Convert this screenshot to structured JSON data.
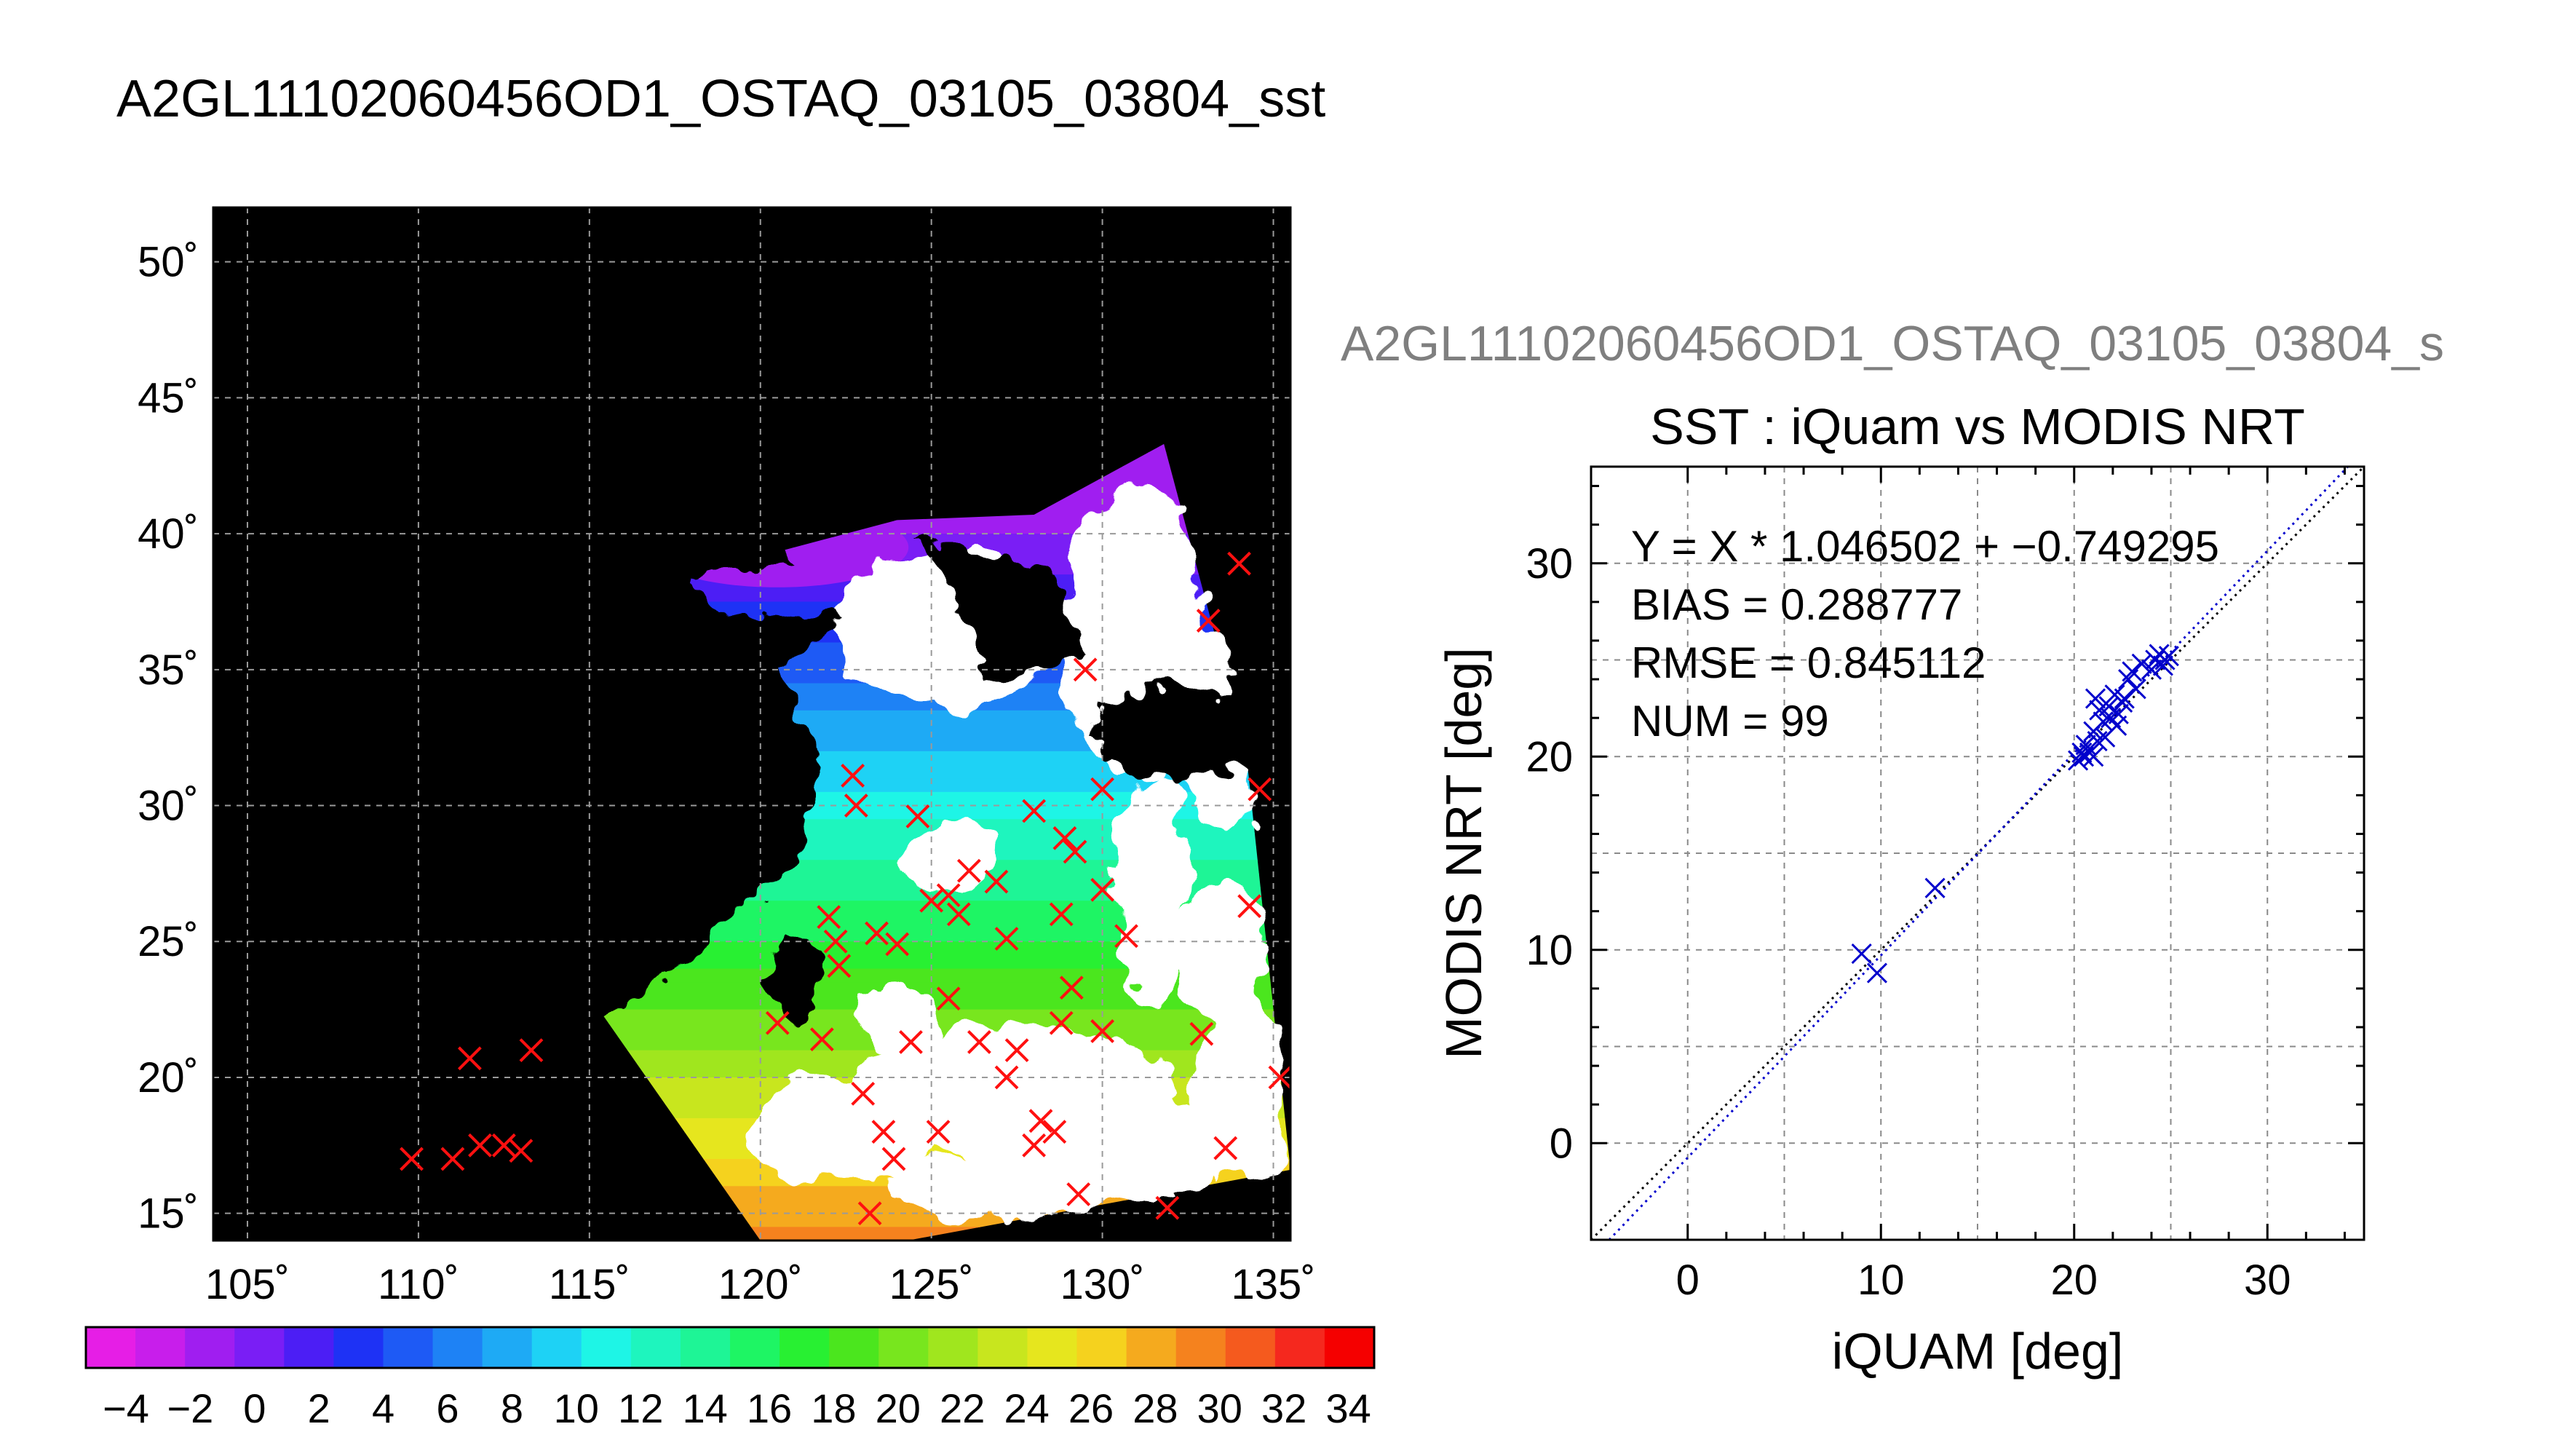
{
  "main_title": "A2GL11102060456OD1_OSTAQ_03105_03804_sst",
  "map": {
    "lon_ticks": [
      "105˚",
      "110˚",
      "115˚",
      "120˚",
      "125˚",
      "130˚",
      "135˚"
    ],
    "lat_ticks": [
      "50˚",
      "45˚",
      "40˚",
      "35˚",
      "30˚",
      "25˚",
      "20˚",
      "15˚"
    ],
    "lon_range": [
      104,
      135.5
    ],
    "lat_range": [
      14,
      52
    ],
    "background_color": "#000000",
    "cloud_color": "#ffffff",
    "buoy_markers": [
      [
        109.8,
        17.0
      ],
      [
        111.0,
        17.0
      ],
      [
        111.5,
        20.7
      ],
      [
        111.8,
        17.5
      ],
      [
        112.5,
        17.5
      ],
      [
        113.0,
        17.3
      ],
      [
        113.3,
        21.0
      ],
      [
        120.5,
        22.0
      ],
      [
        121.8,
        21.4
      ],
      [
        122.0,
        25.9
      ],
      [
        122.2,
        25.0
      ],
      [
        122.3,
        24.1
      ],
      [
        122.7,
        31.1
      ],
      [
        122.8,
        30.0
      ],
      [
        123.0,
        19.4
      ],
      [
        123.2,
        15.0
      ],
      [
        123.4,
        25.3
      ],
      [
        123.6,
        18.0
      ],
      [
        123.9,
        17.0
      ],
      [
        124.0,
        24.9
      ],
      [
        124.4,
        21.3
      ],
      [
        124.6,
        29.6
      ],
      [
        125.0,
        26.5
      ],
      [
        125.2,
        18.0
      ],
      [
        125.5,
        26.7
      ],
      [
        125.5,
        22.9
      ],
      [
        125.8,
        26.0
      ],
      [
        126.1,
        27.6
      ],
      [
        126.4,
        21.3
      ],
      [
        126.9,
        27.2
      ],
      [
        127.2,
        25.1
      ],
      [
        127.2,
        20.0
      ],
      [
        127.5,
        21.0
      ],
      [
        128.0,
        29.8
      ],
      [
        128.0,
        17.5
      ],
      [
        128.2,
        18.4
      ],
      [
        128.6,
        18.0
      ],
      [
        128.8,
        26.0
      ],
      [
        128.8,
        22.0
      ],
      [
        128.9,
        28.8
      ],
      [
        129.1,
        23.3
      ],
      [
        129.2,
        28.3
      ],
      [
        129.3,
        15.7
      ],
      [
        129.5,
        35.0
      ],
      [
        130.0,
        26.9
      ],
      [
        130.0,
        30.6
      ],
      [
        130.0,
        21.7
      ],
      [
        130.7,
        25.2
      ],
      [
        131.9,
        15.2
      ],
      [
        132.9,
        21.6
      ],
      [
        133.1,
        36.8
      ],
      [
        133.6,
        17.4
      ],
      [
        134.0,
        38.9
      ],
      [
        134.3,
        26.3
      ],
      [
        134.6,
        30.6
      ],
      [
        135.2,
        20.0
      ]
    ]
  },
  "colorbar": {
    "labels": [
      "−4",
      "−2",
      "0",
      "2",
      "4",
      "6",
      "8",
      "10",
      "12",
      "14",
      "16",
      "18",
      "20",
      "22",
      "24",
      "26",
      "28",
      "30",
      "32",
      "34"
    ],
    "colors": [
      "#e61ee6",
      "#c81eeb",
      "#a01ef0",
      "#7a1ef5",
      "#4c1ef5",
      "#1e32f5",
      "#1e5af5",
      "#1e82f5",
      "#1eaaf5",
      "#1ed2f5",
      "#1ef5e6",
      "#1ef5be",
      "#1ef596",
      "#1ef564",
      "#28f032",
      "#4be61e",
      "#78e61e",
      "#a0e61e",
      "#c8e61e",
      "#e6e61e",
      "#f5d21e",
      "#f5aa1e",
      "#f5821e",
      "#f55a1e",
      "#f5281e",
      "#f50000"
    ]
  },
  "scatter": {
    "header": "A2GL11102060456OD1_OSTAQ_03105_03804_s",
    "chart_data": {
      "type": "scatter",
      "title": "SST : iQuam vs MODIS NRT",
      "xlabel": "iQUAM [deg]",
      "ylabel": "MODIS NRT [deg]",
      "xlim": [
        -5,
        35
      ],
      "ylim": [
        -5,
        35
      ],
      "x_ticks": [
        0,
        10,
        20,
        30
      ],
      "y_ticks": [
        0,
        10,
        20,
        30
      ],
      "grid": true,
      "marker_color": "#0000cc",
      "regression": {
        "slope": 1.046502,
        "intercept": -0.749295,
        "color": "#0000cc"
      },
      "identity_color": "#000000",
      "annotations": [
        "Y = X * 1.046502 + −0.749295",
        "BIAS = 0.288777",
        "RMSE = 0.845112",
        "NUM = 99"
      ],
      "points": [
        [
          9.0,
          9.8
        ],
        [
          9.8,
          8.8
        ],
        [
          12.8,
          13.2
        ],
        [
          20.2,
          19.8
        ],
        [
          20.4,
          20.2
        ],
        [
          20.5,
          20.0
        ],
        [
          20.6,
          20.6
        ],
        [
          20.8,
          20.2
        ],
        [
          21.0,
          21.3
        ],
        [
          21.0,
          20.0
        ],
        [
          21.2,
          20.8
        ],
        [
          21.1,
          23.0
        ],
        [
          21.3,
          22.4
        ],
        [
          21.5,
          21.8
        ],
        [
          21.6,
          21.0
        ],
        [
          21.8,
          22.6
        ],
        [
          21.9,
          22.0
        ],
        [
          22.1,
          23.2
        ],
        [
          22.2,
          21.6
        ],
        [
          22.3,
          22.2
        ],
        [
          22.5,
          22.8
        ],
        [
          22.6,
          23.0
        ],
        [
          22.8,
          24.0
        ],
        [
          23.0,
          24.4
        ],
        [
          23.2,
          23.5
        ],
        [
          23.5,
          24.8
        ],
        [
          24.0,
          24.5
        ],
        [
          24.2,
          25.0
        ],
        [
          24.4,
          25.3
        ],
        [
          24.6,
          24.7
        ],
        [
          24.7,
          25.0
        ],
        [
          24.9,
          25.2
        ]
      ]
    }
  }
}
